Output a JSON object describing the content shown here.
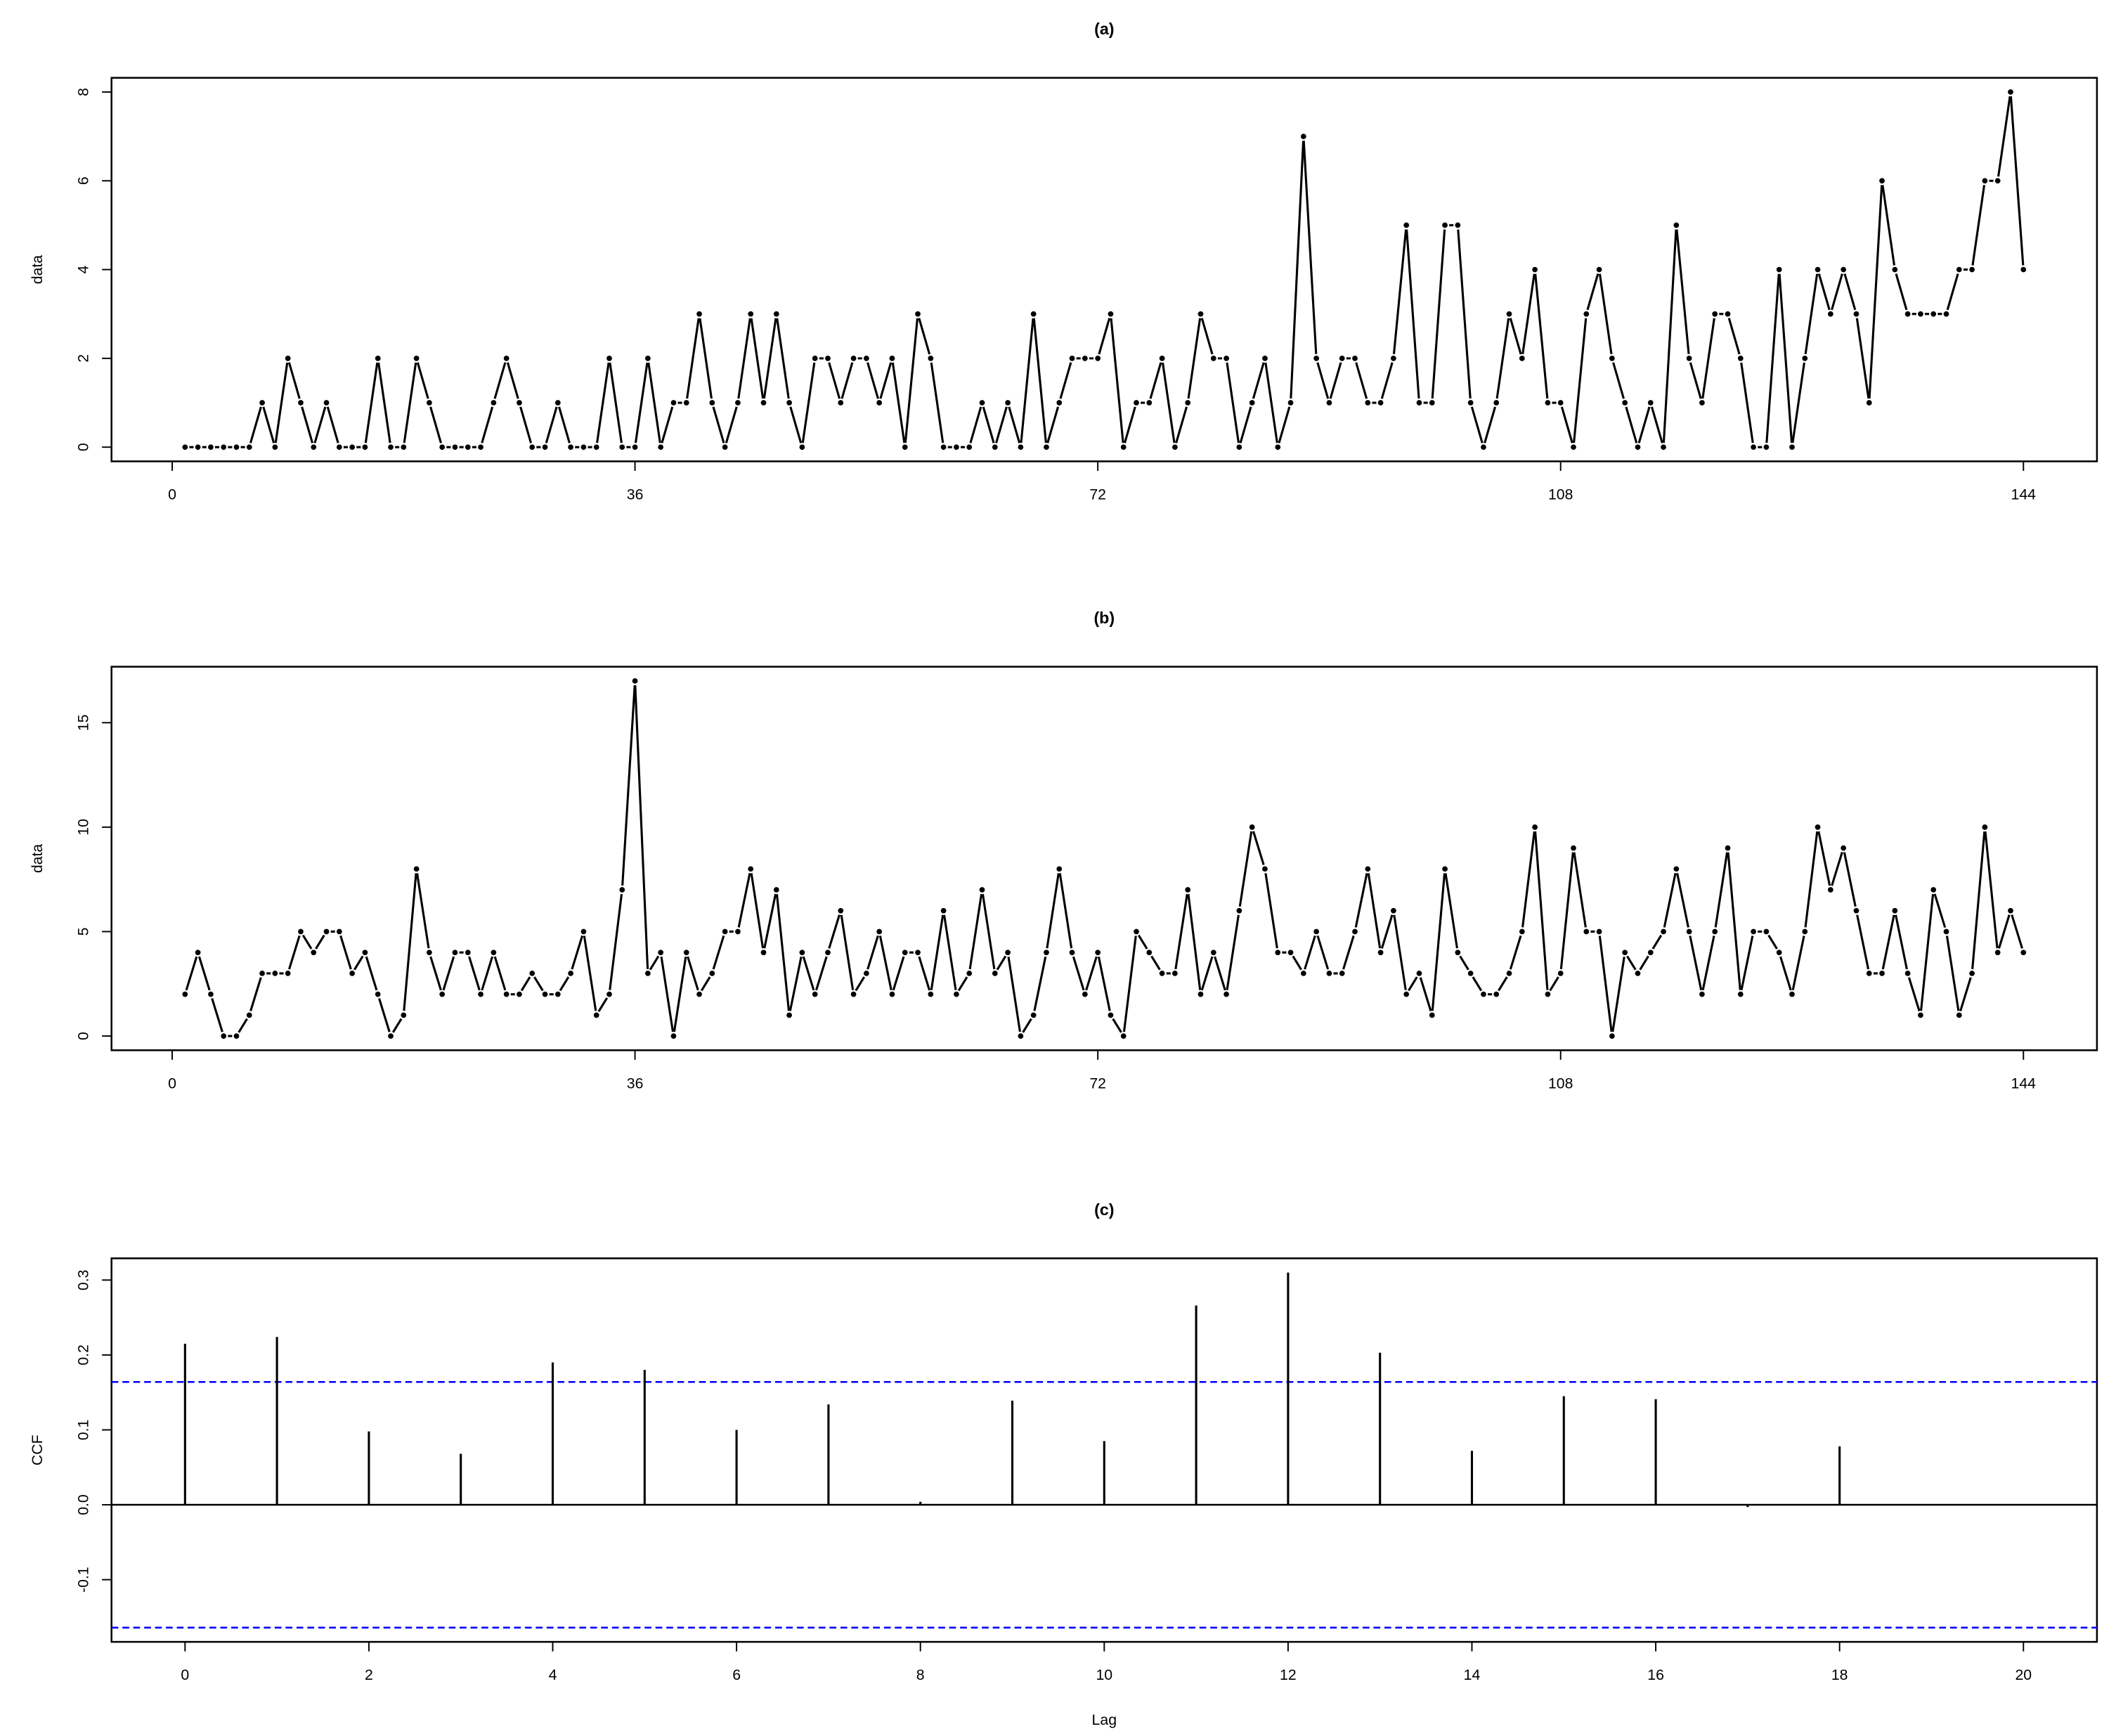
{
  "chart_data": [
    {
      "type": "line",
      "title": "(a)",
      "y_label": "data",
      "color": "#000000",
      "x": [
        1,
        2,
        3,
        4,
        5,
        6,
        7,
        8,
        9,
        10,
        11,
        12,
        13,
        14,
        15,
        16,
        17,
        18,
        19,
        20,
        21,
        22,
        23,
        24,
        25,
        26,
        27,
        28,
        29,
        30,
        31,
        32,
        33,
        34,
        35,
        36,
        37,
        38,
        39,
        40,
        41,
        42,
        43,
        44,
        45,
        46,
        47,
        48,
        49,
        50,
        51,
        52,
        53,
        54,
        55,
        56,
        57,
        58,
        59,
        60,
        61,
        62,
        63,
        64,
        65,
        66,
        67,
        68,
        69,
        70,
        71,
        72,
        73,
        74,
        75,
        76,
        77,
        78,
        79,
        80,
        81,
        82,
        83,
        84,
        85,
        86,
        87,
        88,
        89,
        90,
        91,
        92,
        93,
        94,
        95,
        96,
        97,
        98,
        99,
        100,
        101,
        102,
        103,
        104,
        105,
        106,
        107,
        108,
        109,
        110,
        111,
        112,
        113,
        114,
        115,
        116,
        117,
        118,
        119,
        120,
        121,
        122,
        123,
        124,
        125,
        126,
        127,
        128,
        129,
        130,
        131,
        132,
        133,
        134,
        135,
        136,
        137,
        138,
        139,
        140,
        141,
        142,
        143,
        144
      ],
      "values": [
        0,
        0,
        0,
        0,
        0,
        0,
        1,
        0,
        2,
        1,
        0,
        1,
        0,
        0,
        0,
        2,
        0,
        0,
        2,
        1,
        0,
        0,
        0,
        0,
        1,
        2,
        1,
        0,
        0,
        1,
        0,
        0,
        0,
        2,
        0,
        0,
        2,
        0,
        1,
        1,
        3,
        1,
        0,
        1,
        3,
        1,
        3,
        1,
        0,
        2,
        2,
        1,
        2,
        2,
        1,
        2,
        0,
        3,
        2,
        0,
        0,
        0,
        1,
        0,
        1,
        0,
        3,
        0,
        1,
        2,
        2,
        2,
        3,
        0,
        1,
        1,
        2,
        0,
        1,
        3,
        2,
        2,
        0,
        1,
        2,
        0,
        1,
        7,
        2,
        1,
        2,
        2,
        1,
        1,
        2,
        5,
        1,
        1,
        5,
        5,
        1,
        0,
        1,
        3,
        2,
        4,
        1,
        1,
        0,
        3,
        4,
        2,
        1,
        0,
        1,
        0,
        5,
        2,
        1,
        3,
        3,
        2,
        0,
        0,
        4,
        0,
        2,
        4,
        3,
        4,
        3,
        1,
        6,
        4,
        3,
        3,
        3,
        3,
        4,
        4,
        6,
        6,
        8,
        4
      ],
      "xlim": [
        -4.72,
        149.72
      ],
      "xticks": [
        0,
        36,
        72,
        108,
        144
      ],
      "ylim": [
        -0.32,
        8.32
      ],
      "yticks": [
        0,
        2,
        4,
        6,
        8
      ]
    },
    {
      "type": "line",
      "title": "(b)",
      "y_label": "data",
      "color": "#000000",
      "x": [
        1,
        2,
        3,
        4,
        5,
        6,
        7,
        8,
        9,
        10,
        11,
        12,
        13,
        14,
        15,
        16,
        17,
        18,
        19,
        20,
        21,
        22,
        23,
        24,
        25,
        26,
        27,
        28,
        29,
        30,
        31,
        32,
        33,
        34,
        35,
        36,
        37,
        38,
        39,
        40,
        41,
        42,
        43,
        44,
        45,
        46,
        47,
        48,
        49,
        50,
        51,
        52,
        53,
        54,
        55,
        56,
        57,
        58,
        59,
        60,
        61,
        62,
        63,
        64,
        65,
        66,
        67,
        68,
        69,
        70,
        71,
        72,
        73,
        74,
        75,
        76,
        77,
        78,
        79,
        80,
        81,
        82,
        83,
        84,
        85,
        86,
        87,
        88,
        89,
        90,
        91,
        92,
        93,
        94,
        95,
        96,
        97,
        98,
        99,
        100,
        101,
        102,
        103,
        104,
        105,
        106,
        107,
        108,
        109,
        110,
        111,
        112,
        113,
        114,
        115,
        116,
        117,
        118,
        119,
        120,
        121,
        122,
        123,
        124,
        125,
        126,
        127,
        128,
        129,
        130,
        131,
        132,
        133,
        134,
        135,
        136,
        137,
        138,
        139,
        140,
        141,
        142,
        143,
        144
      ],
      "values": [
        2,
        4,
        2,
        0,
        0,
        1,
        3,
        3,
        3,
        5,
        4,
        5,
        5,
        3,
        4,
        2,
        0,
        1,
        8,
        4,
        2,
        4,
        4,
        2,
        4,
        2,
        2,
        3,
        2,
        2,
        3,
        5,
        1,
        2,
        7,
        17,
        3,
        4,
        0,
        4,
        2,
        3,
        5,
        5,
        8,
        4,
        7,
        1,
        4,
        2,
        4,
        6,
        2,
        3,
        5,
        2,
        4,
        4,
        2,
        6,
        2,
        3,
        7,
        3,
        4,
        0,
        1,
        4,
        8,
        4,
        2,
        4,
        1,
        0,
        5,
        4,
        3,
        3,
        7,
        2,
        4,
        2,
        6,
        10,
        8,
        4,
        4,
        3,
        5,
        3,
        3,
        5,
        8,
        4,
        6,
        2,
        3,
        1,
        8,
        4,
        3,
        2,
        2,
        3,
        5,
        10,
        2,
        3,
        9,
        5,
        5,
        0,
        4,
        3,
        4,
        5,
        8,
        5,
        2,
        5,
        9,
        2,
        5,
        5,
        4,
        2,
        5,
        10,
        7,
        9,
        6,
        3,
        3,
        6,
        3,
        1,
        7,
        5,
        1,
        3,
        10,
        4,
        6,
        4
      ],
      "xlim": [
        -4.72,
        149.72
      ],
      "xticks": [
        0,
        36,
        72,
        108,
        144
      ],
      "ylim": [
        -0.68,
        17.68
      ],
      "yticks": [
        0,
        5,
        10,
        15
      ]
    },
    {
      "type": "stem",
      "title": "(c)",
      "x_label": "Lag",
      "y_label": "CCF",
      "color": "#000000",
      "x": [
        0,
        1,
        2,
        3,
        4,
        5,
        6,
        7,
        8,
        9,
        10,
        11,
        12,
        13,
        14,
        15,
        16,
        17,
        18,
        19,
        20
      ],
      "values": [
        0.215,
        0.224,
        0.098,
        0.068,
        0.19,
        0.18,
        0.1,
        0.134,
        0.004,
        0.139,
        0.085,
        0.266,
        0.31,
        0.203,
        0.072,
        0.145,
        0.141,
        -0.003,
        0.078,
        0,
        0
      ],
      "confidence_bounds": [
        0.164,
        -0.164
      ],
      "ci_color": "#0000ff",
      "xlim": [
        -0.8,
        20.8
      ],
      "xticks": [
        0,
        2,
        4,
        6,
        8,
        10,
        12,
        14,
        16,
        18,
        20
      ],
      "ylim": [
        -0.183,
        0.329
      ],
      "yticks": [
        -0.1,
        {
          "value": 0,
          "label": "0.0"
        },
        0.1,
        0.2,
        0.3
      ]
    }
  ]
}
